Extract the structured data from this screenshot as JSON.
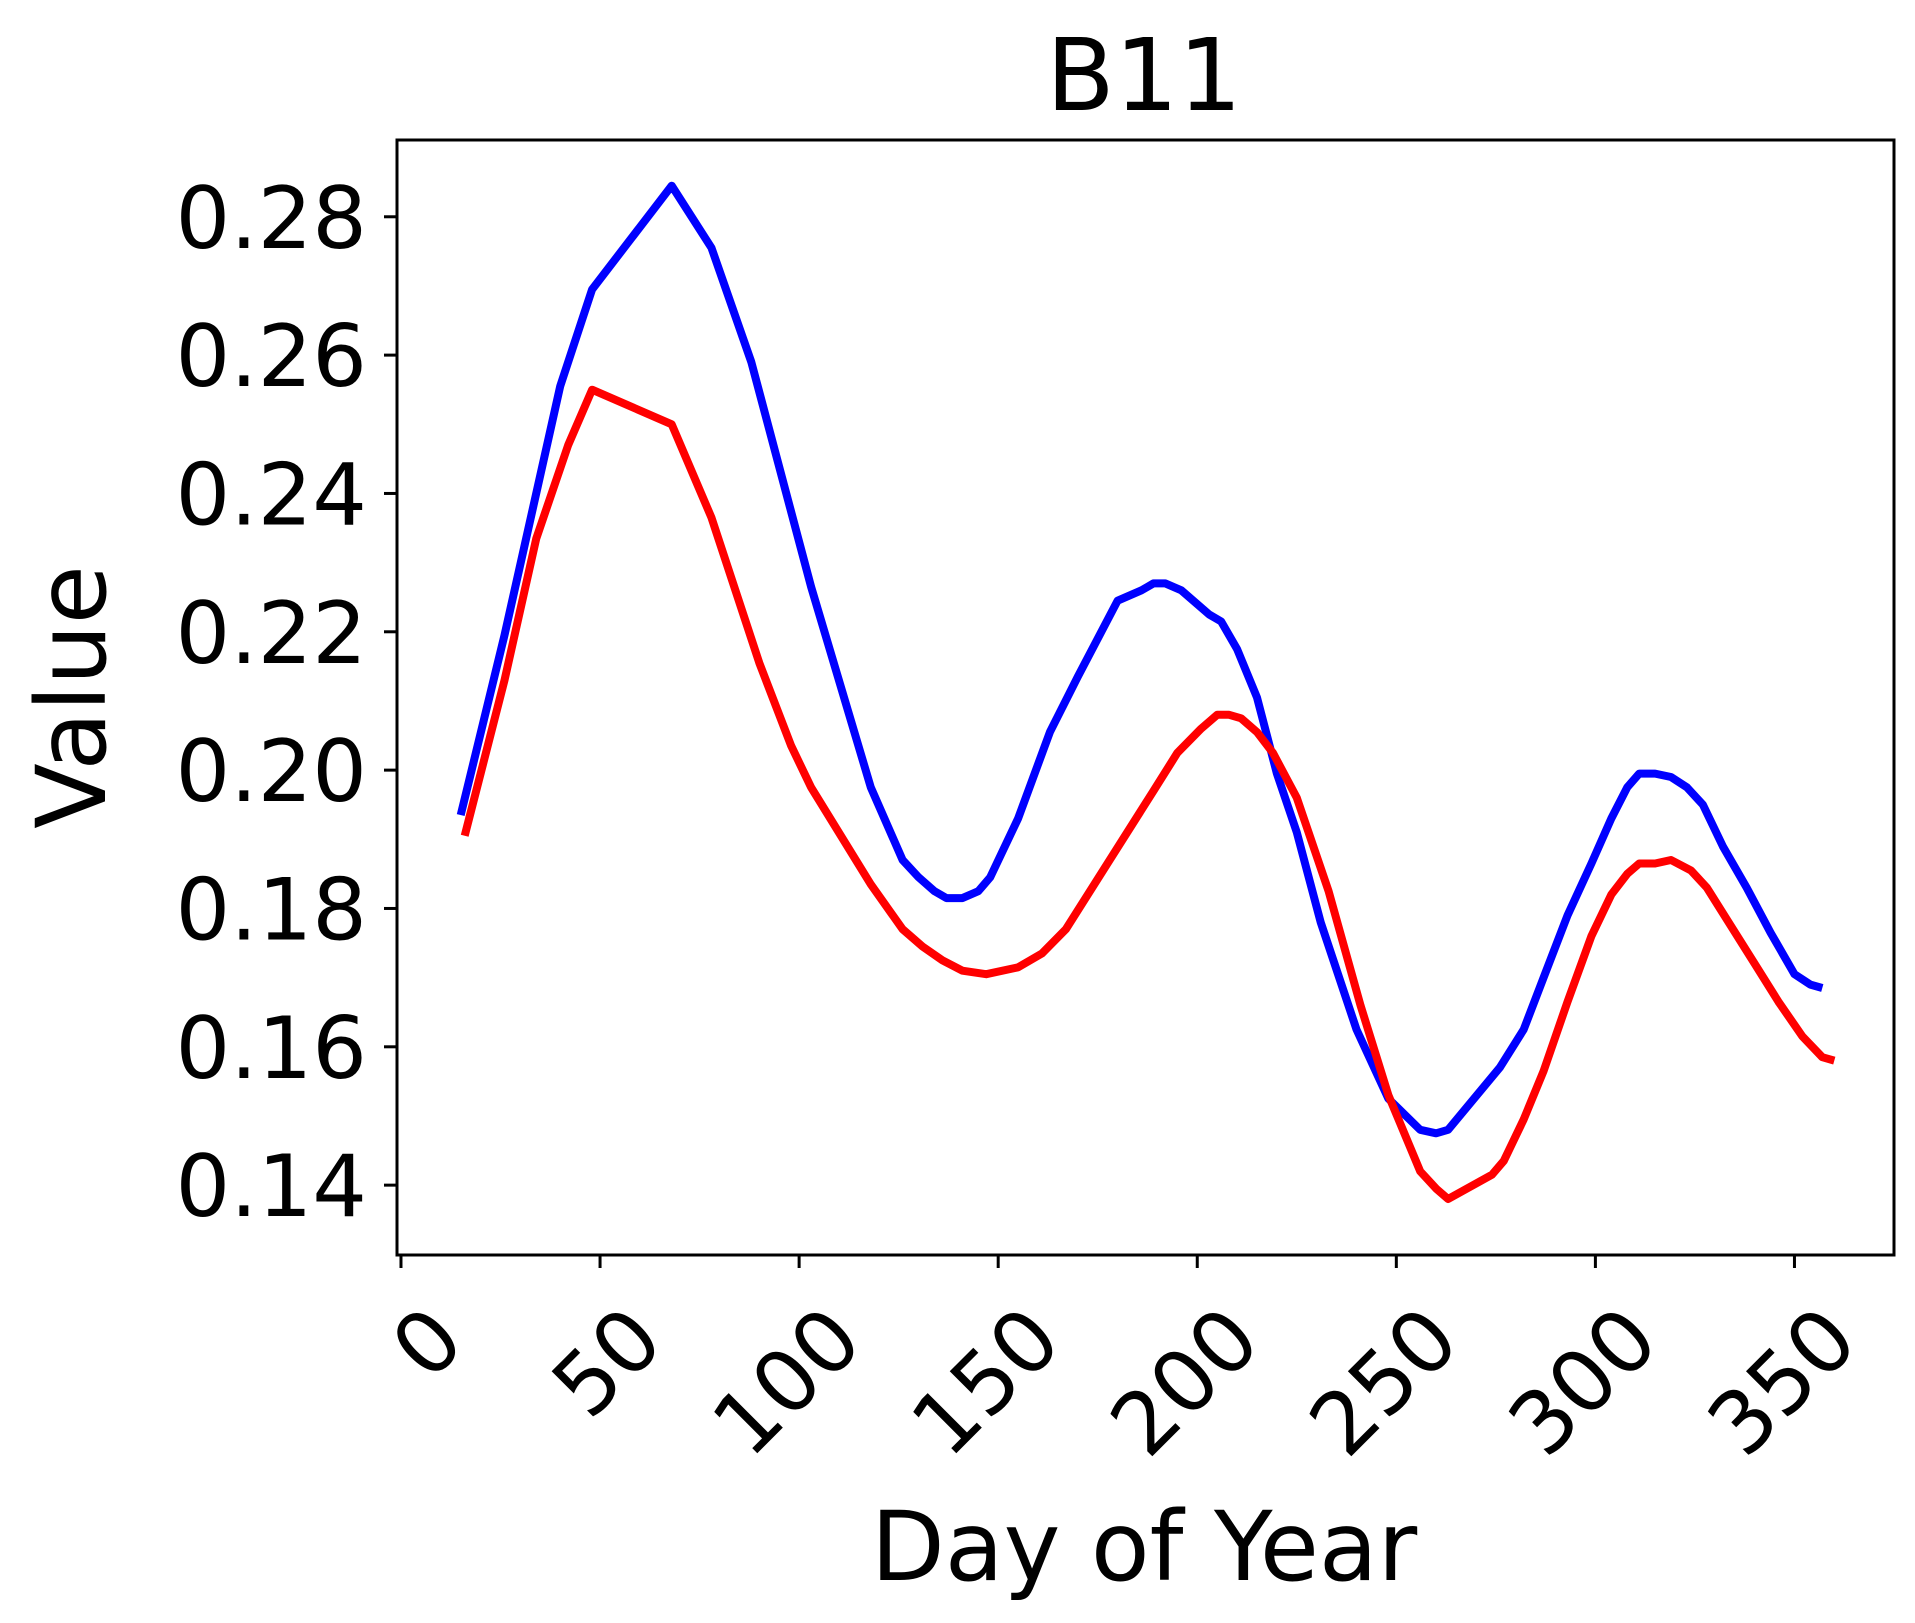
{
  "chart_data": {
    "type": "line",
    "title": "B11",
    "xlabel": "Day of Year",
    "ylabel": "Value",
    "xlim": [
      -1,
      375
    ],
    "ylim": [
      0.1299,
      0.2911
    ],
    "xticks": [
      0,
      50,
      100,
      150,
      200,
      250,
      300,
      350
    ],
    "yticks": [
      0.14,
      0.16,
      0.18,
      0.2,
      0.22,
      0.24,
      0.26,
      0.28
    ],
    "ytick_labels": [
      "0.14",
      "0.16",
      "0.18",
      "0.20",
      "0.22",
      "0.24",
      "0.26",
      "0.28"
    ],
    "legend": "none",
    "grid": false,
    "series": [
      {
        "color": "#0000ff",
        "x": [
          15,
          26,
          40,
          48,
          68,
          78,
          88,
          103,
          118,
          126,
          130,
          134,
          137,
          141,
          145,
          148,
          155,
          163,
          170,
          180,
          186,
          189,
          192,
          196,
          203,
          206,
          210,
          215,
          220,
          225,
          231,
          240,
          248,
          256,
          260,
          263,
          276,
          282,
          287,
          293,
          299,
          304,
          308,
          311,
          315,
          319,
          323,
          327,
          332,
          338,
          344,
          350,
          354,
          357
        ],
        "y": [
          0.1935,
          0.2195,
          0.2555,
          0.2695,
          0.2845,
          0.2755,
          0.259,
          0.2265,
          0.1975,
          0.187,
          0.1845,
          0.1825,
          0.1815,
          0.1815,
          0.1825,
          0.1845,
          0.193,
          0.2055,
          0.2135,
          0.2245,
          0.226,
          0.227,
          0.227,
          0.226,
          0.2225,
          0.2215,
          0.2175,
          0.2105,
          0.1995,
          0.191,
          0.178,
          0.1625,
          0.1525,
          0.148,
          0.1475,
          0.148,
          0.157,
          0.1625,
          0.17,
          0.179,
          0.1865,
          0.193,
          0.1975,
          0.1995,
          0.1995,
          0.199,
          0.1975,
          0.195,
          0.189,
          0.183,
          0.1765,
          0.1705,
          0.169,
          0.1685
        ]
      },
      {
        "color": "#ff0000",
        "x": [
          16,
          26,
          34,
          42,
          48,
          68,
          78,
          90,
          98,
          103,
          118,
          126,
          131,
          136,
          141,
          147,
          155,
          161,
          167,
          178,
          189,
          195,
          201,
          205,
          208,
          211,
          215,
          219,
          225,
          233,
          241,
          248,
          256,
          260,
          263,
          274,
          277,
          282,
          287,
          293,
          299,
          304,
          308,
          311,
          315,
          319,
          324,
          328,
          334,
          340,
          346,
          352,
          357,
          360
        ],
        "y": [
          0.1905,
          0.213,
          0.2335,
          0.247,
          0.255,
          0.25,
          0.2365,
          0.2155,
          0.2035,
          0.1975,
          0.1835,
          0.177,
          0.1745,
          0.1725,
          0.171,
          0.1705,
          0.1715,
          0.1735,
          0.177,
          0.187,
          0.197,
          0.2025,
          0.206,
          0.208,
          0.208,
          0.2075,
          0.2055,
          0.2025,
          0.196,
          0.1825,
          0.166,
          0.153,
          0.142,
          0.1395,
          0.138,
          0.1415,
          0.1435,
          0.1495,
          0.1565,
          0.1665,
          0.176,
          0.182,
          0.185,
          0.1865,
          0.1865,
          0.187,
          0.1855,
          0.183,
          0.1775,
          0.172,
          0.1665,
          0.1615,
          0.1585,
          0.158
        ]
      }
    ]
  }
}
